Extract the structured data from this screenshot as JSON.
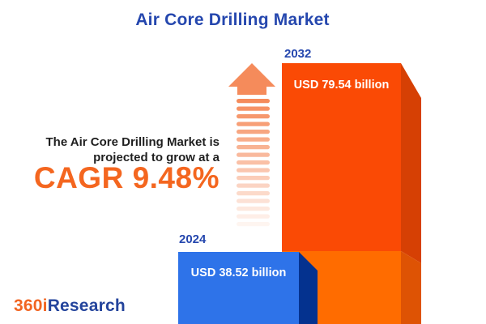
{
  "title": "Air Core Drilling Market",
  "annotation": {
    "line1": "The Air Core Drilling Market is",
    "line2": "projected to grow at a",
    "cagr": "CAGR 9.48%"
  },
  "chart_data": {
    "type": "bar",
    "title": "Air Core Drilling Market",
    "categories": [
      "2024",
      "2032"
    ],
    "values": [
      38.52,
      79.54
    ],
    "unit": "USD billion",
    "value_labels": [
      "USD 38.52 billion",
      "USD 79.54 billion"
    ],
    "cagr_percent": 9.48,
    "annotation": "The Air Core Drilling Market is projected to grow at a CAGR 9.48%",
    "legend": "none",
    "axes": "none",
    "bar_colors": [
      "#2E73E9",
      "#FA4A05"
    ]
  },
  "logo": {
    "prefix": "360i",
    "suffix": "Research"
  },
  "icons": {
    "growth_arrow": "up-arrow-fading"
  },
  "colors": {
    "title_blue": "#2547AE",
    "year_blue": "#2547AE",
    "text_dark": "#1F1F1F",
    "cagr_orange": "#F4661F",
    "logo_orange": "#F26522",
    "logo_blue": "#24449C",
    "bar2032_face_upper": "#FA4A05",
    "bar2032_face_lower": "#FF6C00",
    "bar2032_side_upper": "#D64004",
    "bar2032_side_lower": "#DE5304",
    "bar2024_face": "#2E73E9",
    "bar2024_side": "#04328F",
    "arrow": "#F58B5B",
    "background": "#FFFFFF"
  }
}
